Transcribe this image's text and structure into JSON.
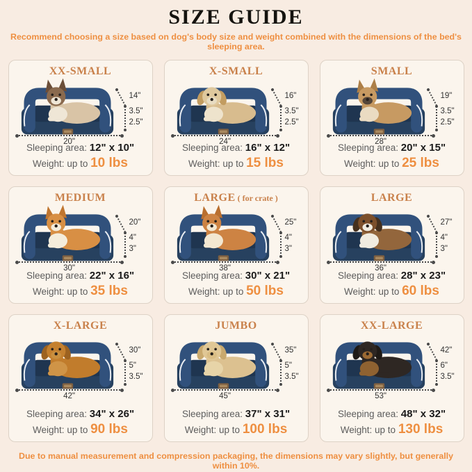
{
  "page": {
    "title": "SIZE GUIDE",
    "subtitle": "Recommend choosing a size based on dog's body size and weight combined with the dimensions of the bed's sleeping area.",
    "disclaimer": "Due to manual measurement and compression packaging, the dimensions may vary slightly, but generally within 10%."
  },
  "labels": {
    "sleeping_area": "Sleeping area:",
    "weight": "Weight:",
    "up_to": "up to"
  },
  "colors": {
    "page_bg": "#f8ece2",
    "card_bg": "#fbf5ed",
    "card_border": "#ddd2c6",
    "accent_orange": "#ee8f41",
    "size_title_orange": "#c9814b",
    "bed_bolster_navy": "#31517c",
    "bed_base_navy": "#27415f",
    "bed_cushion_navy": "#1f3550",
    "piping_white": "#e9edf2",
    "tag_brown": "#7d5f41",
    "dim_line_gray": "#4a4a4a",
    "text_gray": "#5d5d5d",
    "text_dark": "#1b1b1b"
  },
  "sizes": [
    {
      "name": "XX-SMALL",
      "suffix": "",
      "depth": "14\"",
      "bolster_height": "3.5\"",
      "base_height": "2.5\"",
      "width": "20\"",
      "sleeping_area": "12\" x 10\"",
      "max_weight": "10 lbs",
      "illustration": {
        "animal": "ragdoll-cat",
        "ears": "up",
        "body": "#d9c4a6",
        "head": "#8a6a4e",
        "ear": "#6b4e38",
        "chest": "#efe6d6",
        "muzzle": "#efe6d6"
      }
    },
    {
      "name": "X-SMALL",
      "suffix": "",
      "depth": "16\"",
      "bolster_height": "3.5\"",
      "base_height": "2.5\"",
      "width": "24\"",
      "sleeping_area": "16\" x 12\"",
      "max_weight": "15 lbs",
      "illustration": {
        "animal": "shih-tzu-puppy",
        "ears": "floppy",
        "body": "#d8bc8e",
        "head": "#dfc89d",
        "ear": "#c29c60",
        "chest": "#eee3cc",
        "muzzle": "#e8dcc2"
      }
    },
    {
      "name": "SMALL",
      "suffix": "",
      "depth": "19\"",
      "bolster_height": "3.5\"",
      "base_height": "2.5\"",
      "width": "28\"",
      "sleeping_area": "20\" x 15\"",
      "max_weight": "25 lbs",
      "illustration": {
        "animal": "french-bulldog",
        "ears": "up",
        "body": "#c79a62",
        "head": "#c79a62",
        "ear": "#ad7f47",
        "chest": "#eadbc2",
        "muzzle": "#55463a"
      }
    },
    {
      "name": "MEDIUM",
      "suffix": "",
      "depth": "20\"",
      "bolster_height": "4\"",
      "base_height": "3\"",
      "width": "30\"",
      "sleeping_area": "22\" x 16\"",
      "max_weight": "35 lbs",
      "illustration": {
        "animal": "corgi",
        "ears": "up",
        "body": "#d88f44",
        "head": "#d88f44",
        "ear": "#c07630",
        "chest": "#f4ecdb",
        "muzzle": "#f4ecdb"
      }
    },
    {
      "name": "LARGE",
      "suffix": " ( for crate )",
      "depth": "25\"",
      "bolster_height": "4\"",
      "base_height": "3\"",
      "width": "38\"",
      "sleeping_area": "30\" x 21\"",
      "max_weight": "50 lbs",
      "illustration": {
        "animal": "shiba-inu",
        "ears": "up",
        "body": "#cd8343",
        "head": "#cd8343",
        "ear": "#b96f2f",
        "chest": "#f2e7d1",
        "muzzle": "#f2e7d1"
      }
    },
    {
      "name": "LARGE",
      "suffix": "",
      "depth": "27\"",
      "bolster_height": "4\"",
      "base_height": "3\"",
      "width": "36\"",
      "sleeping_area": "28\" x 23\"",
      "max_weight": "60 lbs",
      "illustration": {
        "animal": "border-collie",
        "ears": "floppy",
        "body": "#93663c",
        "head": "#7c4f2b",
        "ear": "#45301e",
        "chest": "#f0ebe0",
        "muzzle": "#f0ebe0"
      }
    },
    {
      "name": "X-LARGE",
      "suffix": "",
      "depth": "30\"",
      "bolster_height": "5\"",
      "base_height": "3.5\"",
      "width": "42\"",
      "sleeping_area": "34\" x 26\"",
      "max_weight": "90 lbs",
      "illustration": {
        "animal": "golden-retriever",
        "ears": "floppy",
        "body": "#c17c2c",
        "head": "#c4802f",
        "ear": "#9d6220",
        "chest": "#cf9447",
        "muzzle": "#c98f3f"
      }
    },
    {
      "name": "JUMBO",
      "suffix": "",
      "depth": "35\"",
      "bolster_height": "5\"",
      "base_height": "3.5\"",
      "width": "45\"",
      "sleeping_area": "37\" x 31\"",
      "max_weight": "100 lbs",
      "illustration": {
        "animal": "yellow-labrador",
        "ears": "floppy",
        "body": "#dcc190",
        "head": "#e0c795",
        "ear": "#c9a96e",
        "chest": "#e7d4a8",
        "muzzle": "#d9bd85"
      }
    },
    {
      "name": "XX-LARGE",
      "suffix": "",
      "depth": "42\"",
      "bolster_height": "6\"",
      "base_height": "3.5\"",
      "width": "53\"",
      "sleeping_area": "48\" x 32\"",
      "max_weight": "130 lbs",
      "illustration": {
        "animal": "rottweiler",
        "ears": "floppy",
        "body": "#2e2723",
        "head": "#2e2723",
        "ear": "#1f1a16",
        "chest": "#8f6231",
        "muzzle": "#9c6a33"
      }
    }
  ]
}
